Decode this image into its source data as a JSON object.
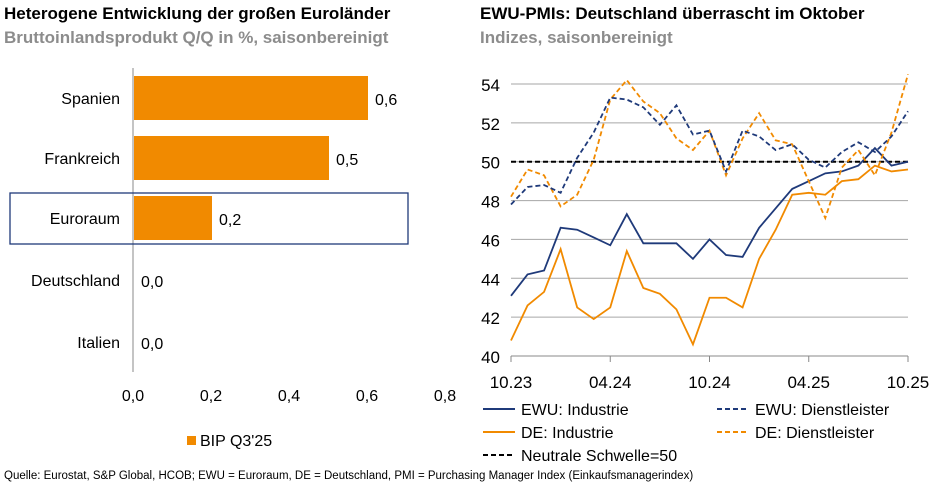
{
  "chart_data": [
    {
      "type": "bar",
      "orientation": "horizontal",
      "title": "Heterogene Entwicklung der großen Euroländer",
      "subtitle": "Bruttoinlandsprodukt Q/Q in %, saisonbereinigt",
      "categories": [
        "Spanien",
        "Frankreich",
        "Euroraum",
        "Deutschland",
        "Italien"
      ],
      "values": [
        0.6,
        0.5,
        0.2,
        0.0,
        0.0
      ],
      "value_labels": [
        "0,6",
        "0,5",
        "0,2",
        "0,0",
        "0,0"
      ],
      "highlighted": "Euroraum",
      "xlim": [
        0,
        0.8
      ],
      "xticks": [
        "0,0",
        "0,2",
        "0,4",
        "0,6",
        "0,8"
      ],
      "legend": "BIP Q3'25",
      "legend_position": "bottom",
      "color": "#F18A00",
      "highlight_color": "#1F3A7A"
    },
    {
      "type": "line",
      "title": "EWU-PMIs: Deutschland überrascht im Oktober",
      "subtitle": "Indizes, saisonbereinigt",
      "x_ticks": [
        "10.23",
        "04.24",
        "10.24",
        "04.25",
        "10.25"
      ],
      "ylim": [
        40,
        54
      ],
      "yticks": [
        "40",
        "42",
        "44",
        "46",
        "48",
        "50",
        "52",
        "54"
      ],
      "grid": true,
      "legend_position": "bottom",
      "series": [
        {
          "name": "EWU: Industrie",
          "color": "#1F3A7A",
          "dash": false,
          "values": [
            43.1,
            44.2,
            44.4,
            46.6,
            46.5,
            46.1,
            45.7,
            47.3,
            45.8,
            45.8,
            45.8,
            45.0,
            46.0,
            45.2,
            45.1,
            46.6,
            47.6,
            48.6,
            49.0,
            49.4,
            49.5,
            49.8,
            50.7,
            49.8,
            50.0
          ]
        },
        {
          "name": "EWU: Dienstleister",
          "color": "#1F3A7A",
          "dash": true,
          "values": [
            47.8,
            48.7,
            48.8,
            48.4,
            50.2,
            51.5,
            53.3,
            53.2,
            52.8,
            51.9,
            52.9,
            51.4,
            51.6,
            49.5,
            51.6,
            51.3,
            50.6,
            50.9,
            50.1,
            49.7,
            50.5,
            51.0,
            50.5,
            51.3,
            52.6
          ]
        },
        {
          "name": "DE: Industrie",
          "color": "#F18A00",
          "dash": false,
          "values": [
            40.8,
            42.6,
            43.3,
            45.5,
            42.5,
            41.9,
            42.5,
            45.4,
            43.5,
            43.2,
            42.4,
            40.6,
            43.0,
            43.0,
            42.5,
            45.0,
            46.5,
            48.3,
            48.4,
            48.3,
            49.0,
            49.1,
            49.8,
            49.5,
            49.6
          ]
        },
        {
          "name": "DE: Dienstleister",
          "color": "#F18A00",
          "dash": true,
          "values": [
            48.2,
            49.6,
            49.3,
            47.7,
            48.3,
            50.1,
            53.2,
            54.2,
            53.1,
            52.5,
            51.2,
            50.6,
            51.6,
            49.3,
            51.2,
            52.5,
            51.1,
            50.9,
            49.0,
            47.1,
            49.7,
            50.6,
            49.3,
            51.5,
            54.5
          ]
        },
        {
          "name": "Neutrale Schwelle=50",
          "color": "#000000",
          "dash": true,
          "constant": 50
        }
      ]
    }
  ],
  "source": "Quelle: Eurostat, S&P Global, HCOB; EWU = Euroraum, DE = Deutschland, PMI = Purchasing Manager Index (Einkaufsmanagerindex)"
}
